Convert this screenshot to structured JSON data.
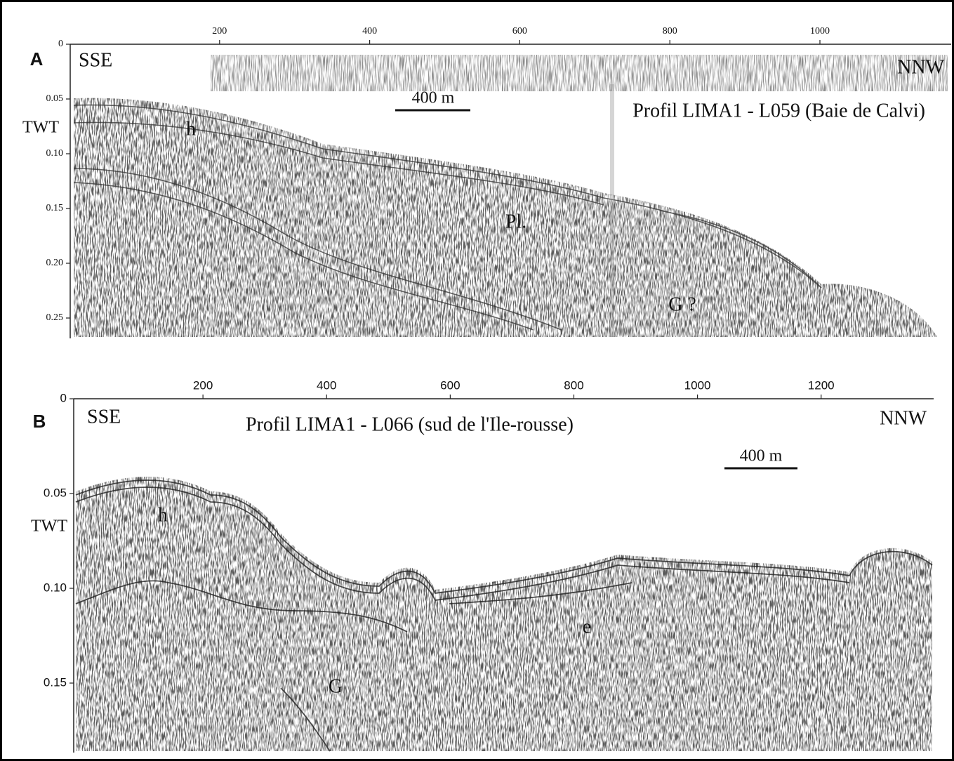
{
  "panels": [
    {
      "letter": "A",
      "left_label": "SSE",
      "right_label": "NNW",
      "title": "Profil LIMA1 - L059 (Baie de Calvi)",
      "scale_bar": "400 m",
      "y_axis_label": "TWT",
      "x_ticks": [
        200,
        400,
        600,
        800,
        1000
      ],
      "y_ticks": [
        0,
        {
          "value": 0.05,
          "label": "0.05"
        },
        {
          "value": 0.1,
          "label": "0.10"
        },
        {
          "value": 0.15,
          "label": "0.15"
        },
        {
          "value": 0.2,
          "label": "0.20"
        },
        {
          "value": 0.25,
          "label": "0.25"
        }
      ],
      "annotations": [
        "h",
        "Pl.",
        "G ?"
      ]
    },
    {
      "letter": "B",
      "left_label": "SSE",
      "right_label": "NNW",
      "title": "Profil LIMA1 - L066 (sud de l'Ile-rousse)",
      "scale_bar": "400 m",
      "y_axis_label": "TWT",
      "x_ticks": [
        200,
        400,
        600,
        800,
        1000,
        1200
      ],
      "y_ticks": [
        0,
        {
          "value": 0.05,
          "label": "0.05"
        },
        {
          "value": 0.1,
          "label": "0.10"
        },
        {
          "value": 0.15,
          "label": "0.15"
        }
      ],
      "annotations": [
        "h",
        "e",
        "G"
      ]
    }
  ]
}
